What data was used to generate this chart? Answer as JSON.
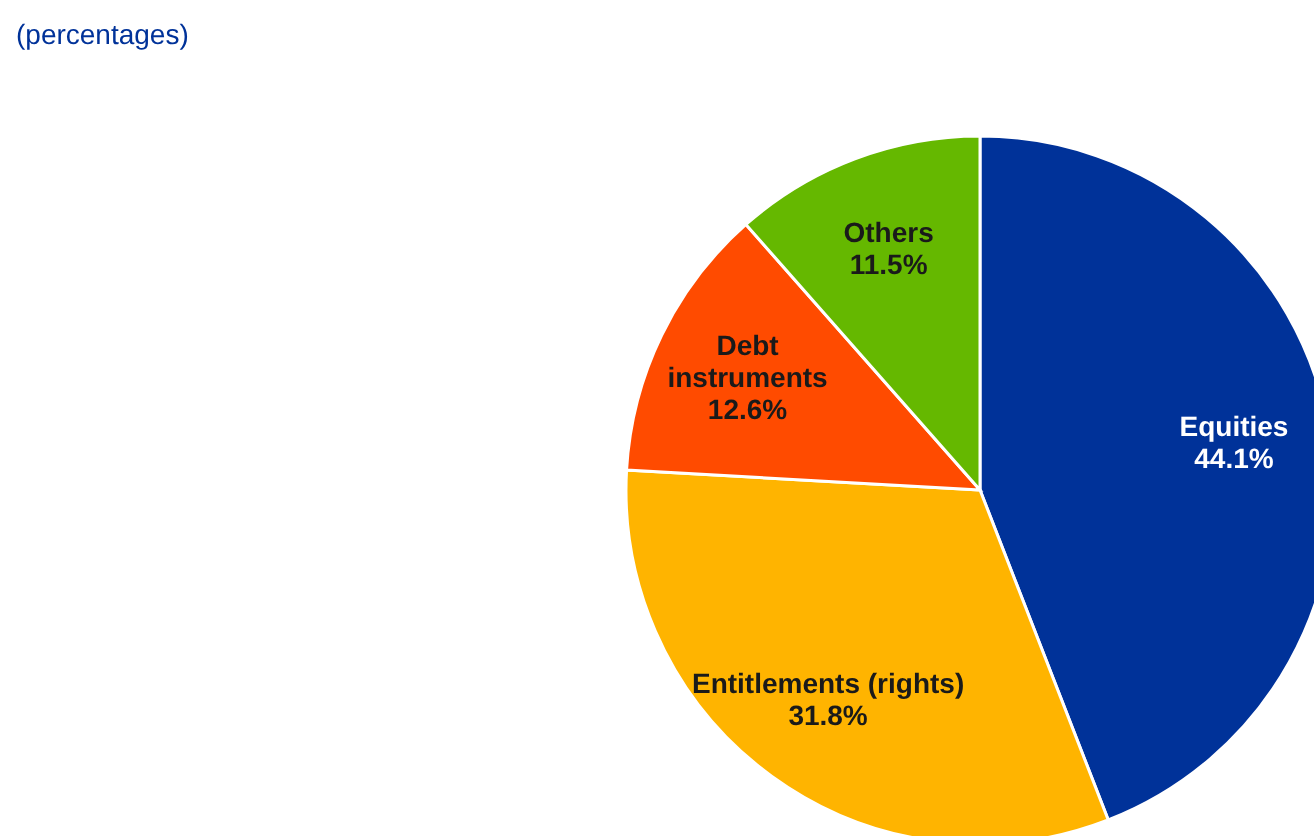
{
  "chart_data": {
    "type": "pie",
    "title": "(percentages)",
    "categories": [
      "Equities",
      "Entitlements (rights)",
      "Debt instruments",
      "Others"
    ],
    "values": [
      44.1,
      31.8,
      12.6,
      11.5
    ],
    "value_labels": [
      "44.1%",
      "31.8%",
      "12.6%",
      "11.5%"
    ],
    "colors": [
      "#003299",
      "#ffb400",
      "#ff4b00",
      "#65b800"
    ]
  }
}
